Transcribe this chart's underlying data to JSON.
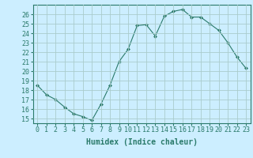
{
  "x": [
    0,
    1,
    2,
    3,
    4,
    5,
    6,
    7,
    8,
    9,
    10,
    11,
    12,
    13,
    14,
    15,
    16,
    17,
    18,
    19,
    20,
    21,
    22,
    23
  ],
  "y": [
    18.5,
    17.5,
    17.0,
    16.2,
    15.5,
    15.2,
    14.8,
    16.5,
    18.5,
    21.0,
    22.3,
    24.8,
    24.9,
    23.7,
    25.8,
    26.3,
    26.5,
    25.7,
    25.7,
    25.0,
    24.3,
    23.0,
    21.5,
    20.3
  ],
  "line_color": "#2a7a6a",
  "marker": "D",
  "marker_size": 2,
  "xlabel": "Humidex (Indice chaleur)",
  "ylabel_ticks": [
    15,
    16,
    17,
    18,
    19,
    20,
    21,
    22,
    23,
    24,
    25,
    26
  ],
  "ylim": [
    14.5,
    27.0
  ],
  "xlim": [
    -0.5,
    23.5
  ],
  "bg_color": "#cceeff",
  "grid_color": "#aacccc",
  "tick_label_fontsize": 6,
  "xlabel_fontsize": 7
}
